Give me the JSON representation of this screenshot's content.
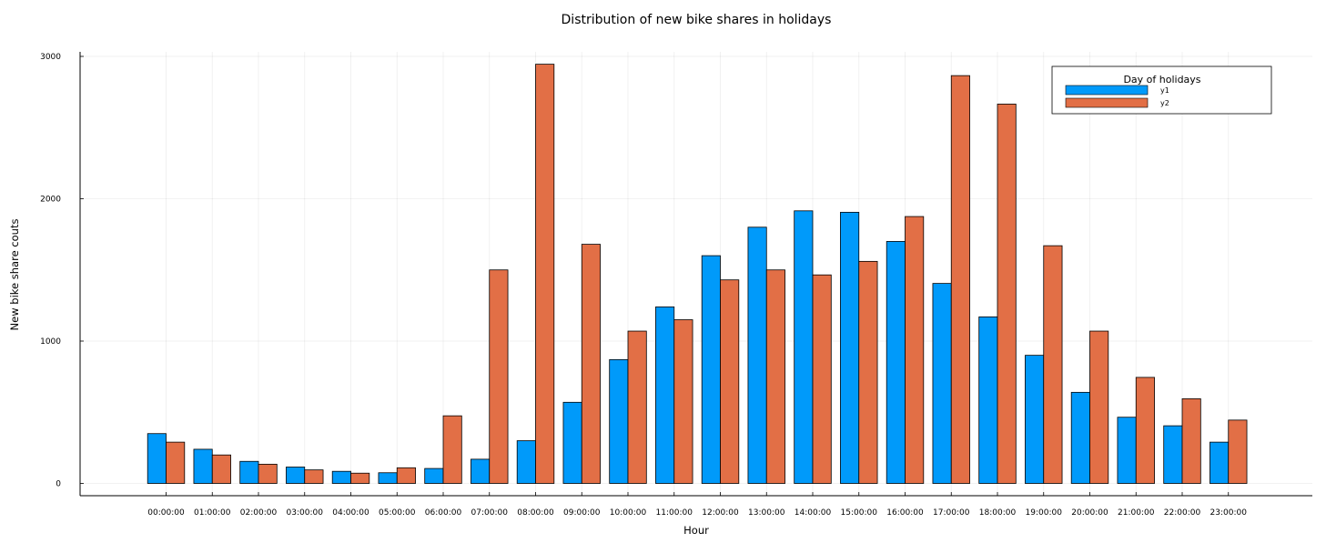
{
  "chart_data": {
    "type": "bar",
    "title": "Distribution of new bike shares in holidays",
    "xlabel": "Hour",
    "ylabel": "New bike share couts",
    "categories": [
      "00:00:00",
      "01:00:00",
      "02:00:00",
      "03:00:00",
      "04:00:00",
      "05:00:00",
      "06:00:00",
      "07:00:00",
      "08:00:00",
      "09:00:00",
      "10:00:00",
      "11:00:00",
      "12:00:00",
      "13:00:00",
      "14:00:00",
      "15:00:00",
      "16:00:00",
      "17:00:00",
      "18:00:00",
      "19:00:00",
      "20:00:00",
      "21:00:00",
      "22:00:00",
      "23:00:00"
    ],
    "series": [
      {
        "name": "y1",
        "color": "#009AFA",
        "values": [
          350,
          240,
          155,
          115,
          85,
          75,
          105,
          170,
          300,
          570,
          870,
          1240,
          1600,
          1800,
          1915,
          1905,
          1700,
          1405,
          1170,
          900,
          640,
          465,
          405,
          290
        ]
      },
      {
        "name": "y2",
        "color": "#E26F46",
        "values": [
          290,
          200,
          135,
          95,
          72,
          110,
          475,
          1500,
          2945,
          1680,
          1070,
          1150,
          1430,
          1500,
          1465,
          1560,
          1875,
          2865,
          2665,
          1670,
          1070,
          745,
          595,
          445
        ]
      }
    ],
    "yticks": [
      0,
      1000,
      2000,
      3000
    ],
    "ytick_labels": [
      "0",
      "1000",
      "2000",
      "3000"
    ],
    "ylim": [
      -90,
      3030
    ],
    "grid": true,
    "legend": {
      "title": "Day of holidays",
      "position": "top-right"
    }
  }
}
